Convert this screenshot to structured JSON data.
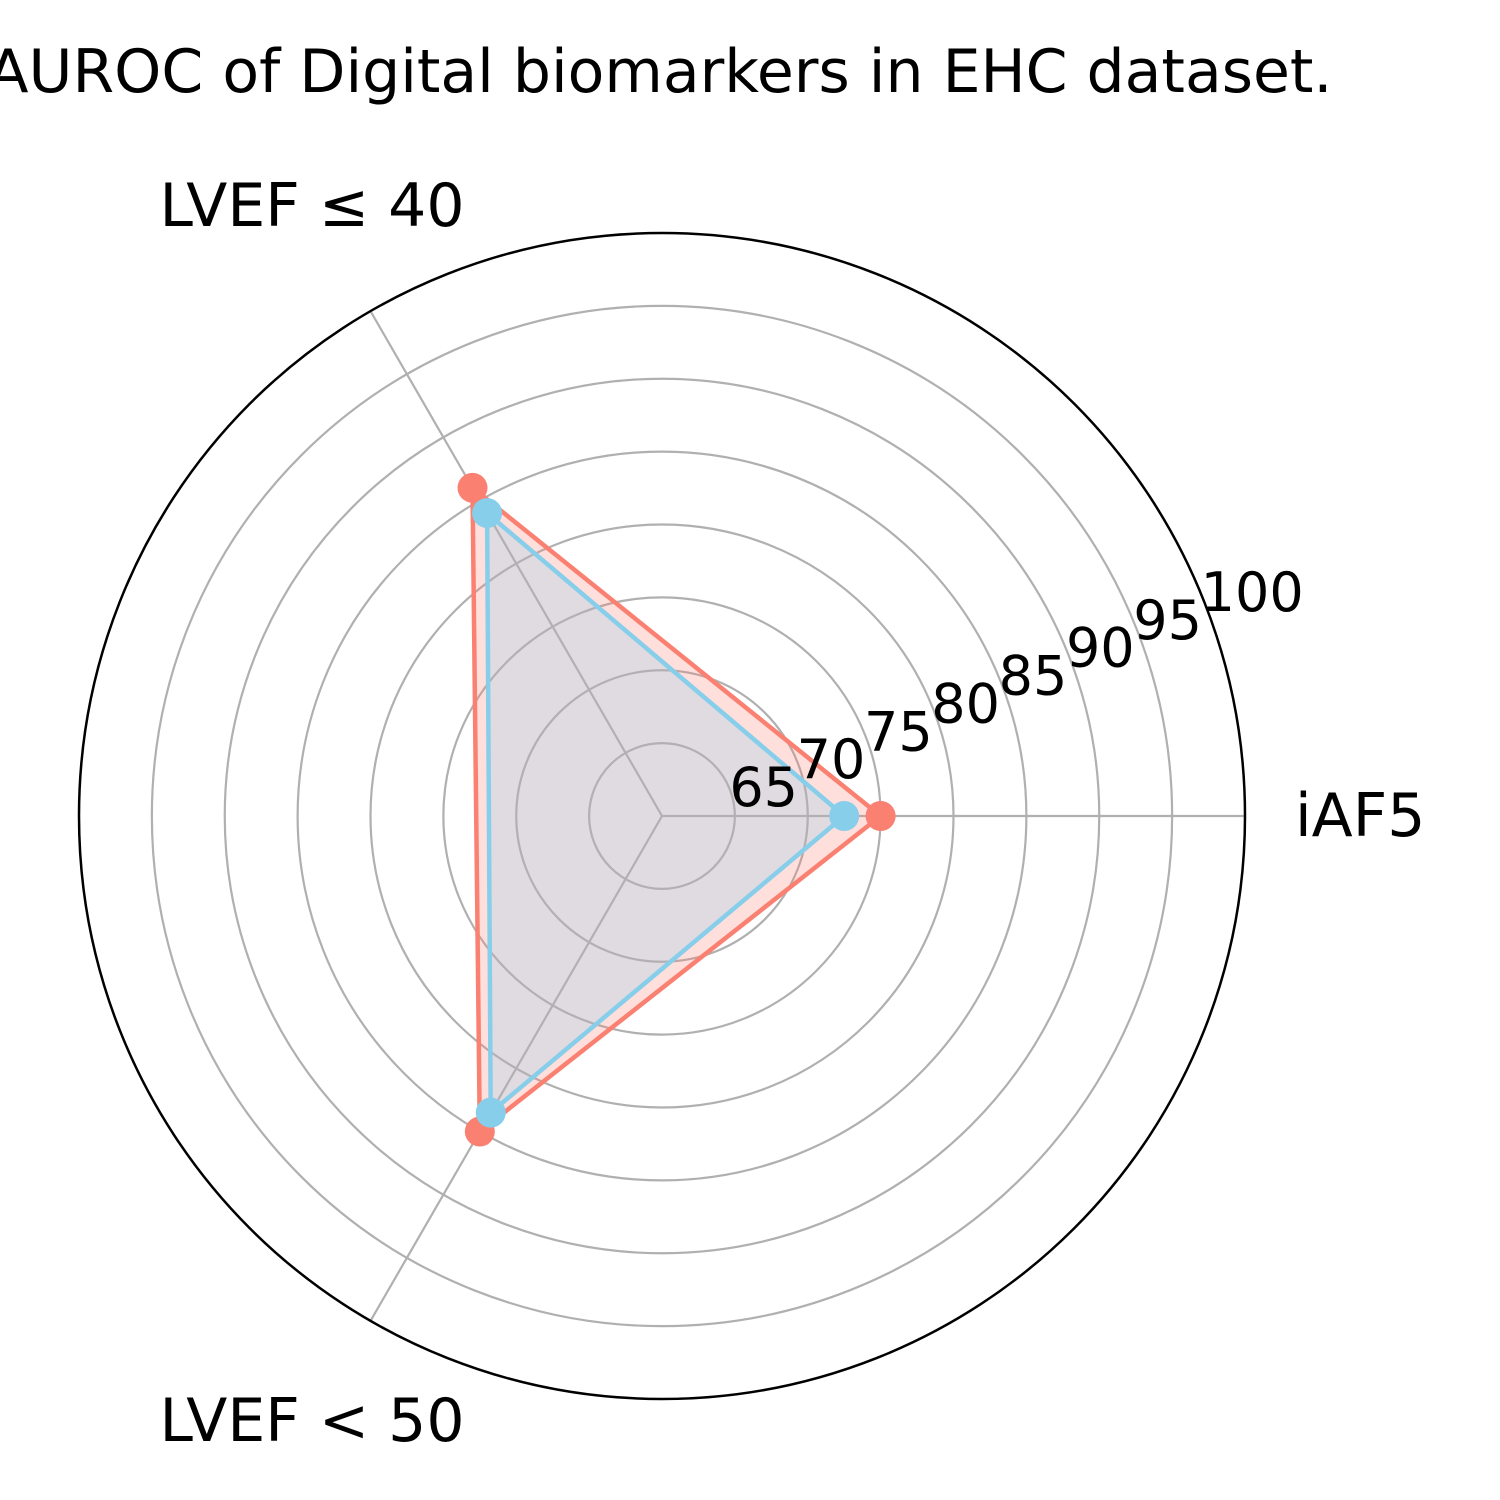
{
  "chart_data": {
    "type": "radar",
    "title": "AUROC of Digital biomarkers in EHC dataset.",
    "categories": [
      "iAF5",
      "LVEF ≤ 40",
      "LVEF < 50"
    ],
    "rlim": [
      60,
      100
    ],
    "radial_ticks": [
      65,
      70,
      75,
      80,
      85,
      90,
      95,
      100
    ],
    "radial_tick_labels": [
      "65",
      "70",
      "75",
      "80",
      "85",
      "90",
      "95",
      "100"
    ],
    "grid": true,
    "series": [
      {
        "color": "#fa8072",
        "fill": "#fa8072",
        "values": [
          75.0,
          86.0,
          85.0
        ]
      },
      {
        "color": "#87ceeb",
        "fill": "#87ceeb",
        "values": [
          72.5,
          84.0,
          83.5
        ]
      }
    ]
  }
}
